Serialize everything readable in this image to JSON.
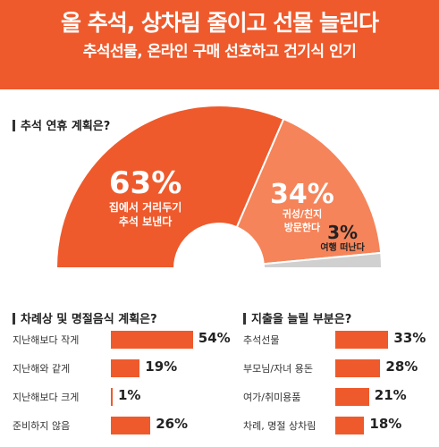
{
  "header": {
    "title": "올 추석, 상차림 줄이고 선물 늘린다",
    "subtitle": "추석선물, 온라인 구매 선호하고 건기식 인기"
  },
  "colors": {
    "accent": "#ee5a2c",
    "accent_light": "#f5845a",
    "grey": "#d0d0d0"
  },
  "chart_data": [
    {
      "type": "pie",
      "title": "추석 연휴 계획은?",
      "categories": [
        "집에서 거리두기 추석 보낸다",
        "귀성/친지 방문한다",
        "여행 떠난다"
      ],
      "values": [
        63,
        34,
        3
      ],
      "labels": [
        {
          "value": "63%",
          "lines": [
            "집에서 거리두기",
            "추석 보낸다"
          ]
        },
        {
          "value": "34%",
          "lines": [
            "귀성/친지",
            "방문한다"
          ]
        },
        {
          "value": "3%",
          "lines": [
            "여행 떠난다"
          ]
        }
      ]
    },
    {
      "type": "bar",
      "title": "차례상 및 명절음식 계획은?",
      "categories": [
        "지난해보다 작게",
        "지난해와 같게",
        "지난해보다 크게",
        "준비하지 않음"
      ],
      "values": [
        54,
        19,
        1,
        26
      ],
      "value_labels": [
        "54%",
        "19%",
        "1%",
        "26%"
      ]
    },
    {
      "type": "bar",
      "title": "지출을 늘릴 부분은?",
      "categories": [
        "추석선물",
        "부모님/자녀 용돈",
        "여가/취미용품",
        "차례, 명절 상차림"
      ],
      "values": [
        33,
        28,
        21,
        18
      ],
      "value_labels": [
        "33%",
        "28%",
        "21%",
        "18%"
      ]
    }
  ]
}
